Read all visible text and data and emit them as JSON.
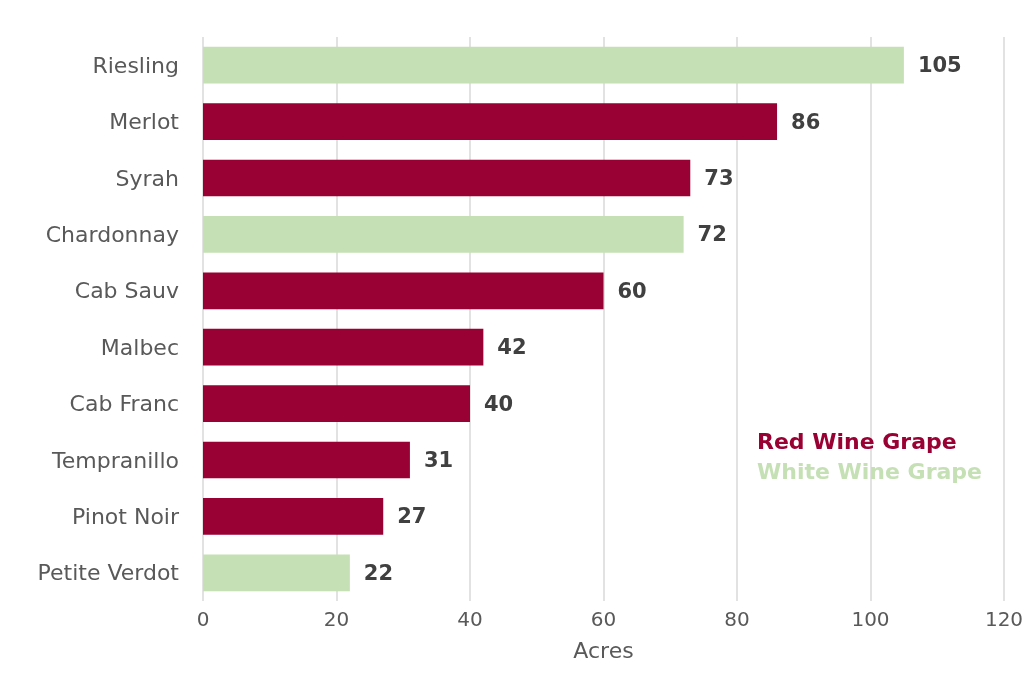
{
  "chart_data": {
    "type": "bar",
    "orientation": "horizontal",
    "xlabel": "Acres",
    "categories": [
      "Riesling",
      "Merlot",
      "Syrah",
      "Chardonnay",
      "Cab Sauv",
      "Malbec",
      "Cab Franc",
      "Tempranillo",
      "Pinot Noir",
      "Petite Verdot"
    ],
    "series": [
      {
        "name": "Red Wine Grape",
        "color": "#990033",
        "values": [
          null,
          86,
          73,
          null,
          60,
          42,
          40,
          31,
          27,
          null
        ]
      },
      {
        "name": "White Wine Grape",
        "color": "#c5e0b4",
        "values": [
          105,
          null,
          null,
          72,
          null,
          null,
          null,
          null,
          null,
          22
        ]
      }
    ],
    "xlim": [
      0,
      120
    ],
    "xticks": [
      0,
      20,
      40,
      60,
      80,
      100,
      120
    ],
    "grid": "x",
    "legend": "bottom right",
    "data_labels": true
  }
}
